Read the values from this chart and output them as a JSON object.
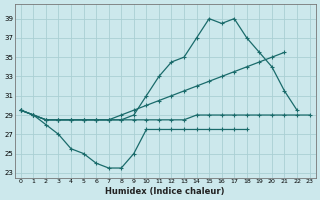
{
  "bg_color": "#cce8ec",
  "grid_color": "#aacfd4",
  "line_color": "#1a6b6b",
  "xlabel": "Humidex (Indice chaleur)",
  "xlim": [
    -0.5,
    23.5
  ],
  "ylim": [
    22.5,
    40.5
  ],
  "yticks": [
    23,
    25,
    27,
    29,
    31,
    33,
    35,
    37,
    39
  ],
  "xticks": [
    0,
    1,
    2,
    3,
    4,
    5,
    6,
    7,
    8,
    9,
    10,
    11,
    12,
    13,
    14,
    15,
    16,
    17,
    18,
    19,
    20,
    21,
    22,
    23
  ],
  "series": [
    {
      "x": [
        0,
        1,
        2,
        3,
        4,
        5,
        6,
        7,
        8,
        9,
        10,
        11,
        12,
        13,
        14,
        15,
        16,
        17,
        18,
        19,
        20,
        21,
        22,
        23
      ],
      "y": [
        29.5,
        29.0,
        28.5,
        28.5,
        28.5,
        28.5,
        28.5,
        28.5,
        28.5,
        28.5,
        28.5,
        28.5,
        28.5,
        28.5,
        29.0,
        29.0,
        29.0,
        29.0,
        29.0,
        29.0,
        29.0,
        29.0,
        29.0,
        29.0
      ]
    },
    {
      "x": [
        0,
        1,
        2,
        3,
        4,
        5,
        6,
        7,
        8,
        9,
        10,
        11,
        12,
        13,
        14,
        15,
        16,
        17,
        18,
        19,
        20,
        21,
        22,
        23
      ],
      "y": [
        29.5,
        29.0,
        28.5,
        28.5,
        28.5,
        28.5,
        28.5,
        28.5,
        29.0,
        29.5,
        30.0,
        30.5,
        31.0,
        31.5,
        32.0,
        32.5,
        33.0,
        33.5,
        34.0,
        34.5,
        35.0,
        35.5,
        null,
        null
      ]
    },
    {
      "x": [
        0,
        1,
        2,
        3,
        4,
        5,
        6,
        7,
        8,
        9,
        10,
        11,
        12,
        13,
        14,
        15,
        16,
        17,
        18,
        19,
        20,
        21,
        22,
        23
      ],
      "y": [
        29.5,
        29.0,
        28.5,
        28.5,
        28.5,
        28.5,
        28.5,
        28.5,
        28.5,
        29.0,
        31.0,
        33.0,
        34.5,
        35.0,
        37.0,
        39.0,
        38.5,
        39.0,
        37.0,
        35.5,
        34.0,
        31.5,
        29.5,
        null
      ]
    },
    {
      "x": [
        0,
        1,
        2,
        3,
        4,
        5,
        6,
        7,
        8,
        9,
        10,
        11,
        12,
        13,
        14,
        15,
        16,
        17,
        18,
        19,
        20,
        21,
        22,
        23
      ],
      "y": [
        29.5,
        29.0,
        28.0,
        27.0,
        25.5,
        25.0,
        24.0,
        23.5,
        23.5,
        25.0,
        27.5,
        27.5,
        27.5,
        27.5,
        27.5,
        27.5,
        27.5,
        27.5,
        27.5,
        null,
        null,
        null,
        null,
        null
      ]
    }
  ]
}
